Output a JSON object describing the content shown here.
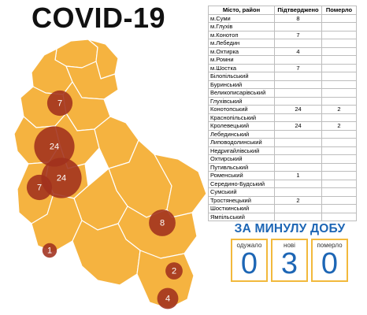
{
  "title": "COVID-19",
  "table": {
    "headers": [
      "Місто, район",
      "Підтверджено",
      "Померло"
    ],
    "rows": [
      [
        "м.Суми",
        "8",
        ""
      ],
      [
        "м.Глухів",
        "",
        ""
      ],
      [
        "м.Конотоп",
        "7",
        ""
      ],
      [
        "м.Лебедин",
        "",
        ""
      ],
      [
        "м.Охтирка",
        "4",
        ""
      ],
      [
        "м.Ромни",
        "",
        ""
      ],
      [
        "м.Шостка",
        "7",
        ""
      ],
      [
        "Білопільський",
        "",
        ""
      ],
      [
        "Буринський",
        "",
        ""
      ],
      [
        "Великописарівський",
        "",
        ""
      ],
      [
        "Глухівський",
        "",
        ""
      ],
      [
        "Конотопський",
        "24",
        "2"
      ],
      [
        "Краснопільський",
        "",
        ""
      ],
      [
        "Кролевецький",
        "24",
        "2"
      ],
      [
        "Лебединський",
        "",
        ""
      ],
      [
        "Липоводолинський",
        "",
        ""
      ],
      [
        "Недригайлівський",
        "",
        ""
      ],
      [
        "Охтирський",
        "",
        ""
      ],
      [
        "Путивльський",
        "",
        ""
      ],
      [
        "Роменський",
        "1",
        ""
      ],
      [
        "Середино-Будський",
        "",
        ""
      ],
      [
        "Сумський",
        "",
        ""
      ],
      [
        "Тростянецький",
        "2",
        ""
      ],
      [
        "Шосткинський",
        "",
        ""
      ],
      [
        "Ямпільський",
        "",
        ""
      ]
    ]
  },
  "daily": {
    "title": "ЗА МИНУЛУ ДОБУ",
    "recovered_label": "одужало",
    "recovered_value": "0",
    "new_label": "нові",
    "new_value": "3",
    "deaths_label": "померло",
    "deaths_value": "0"
  },
  "map": {
    "region_fill": "#f5b340",
    "region_border": "#ffffff",
    "bubble_color": "#a0301c",
    "bubbles": [
      {
        "name": "shostka",
        "label": "7",
        "value": 7
      },
      {
        "name": "krolevets",
        "label": "24",
        "value": 24
      },
      {
        "name": "konotop-district",
        "label": "24",
        "value": 24
      },
      {
        "name": "konotop-city",
        "label": "7",
        "value": 7
      },
      {
        "name": "sumy",
        "label": "8",
        "value": 8
      },
      {
        "name": "romny",
        "label": "1",
        "value": 1
      },
      {
        "name": "trostianets",
        "label": "2",
        "value": 2
      },
      {
        "name": "okhtyrka",
        "label": "4",
        "value": 4
      }
    ]
  }
}
